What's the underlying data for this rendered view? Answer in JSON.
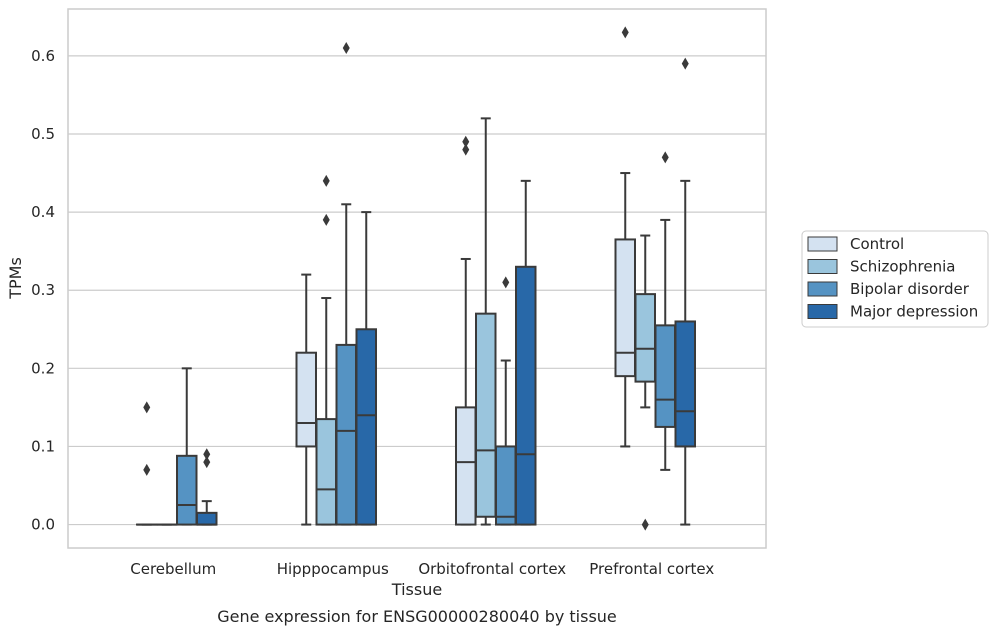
{
  "chart_data": {
    "type": "boxplot",
    "title": "",
    "caption": "Gene expression for ENSG00000280040 by tissue",
    "xlabel": "Tissue",
    "ylabel": "TPMs",
    "ylim": [
      -0.03,
      0.66
    ],
    "yticks": [
      0.0,
      0.1,
      0.2,
      0.3,
      0.4,
      0.5,
      0.6
    ],
    "ytick_labels": [
      "0.0",
      "0.1",
      "0.2",
      "0.3",
      "0.4",
      "0.5",
      "0.6"
    ],
    "grid": "horizontal",
    "legend_placement": "right",
    "categories": [
      "Cerebellum",
      "Hipppocampus",
      "Orbitofrontal cortex",
      "Prefrontal cortex"
    ],
    "series": [
      {
        "name": "Control",
        "color": "#d4e2f1",
        "boxes": [
          {
            "whislo": 0,
            "q1": 0,
            "med": 0,
            "q3": 0,
            "whishi": 0,
            "fliers": [
              0.07,
              0.15
            ]
          },
          {
            "whislo": 0,
            "q1": 0.1,
            "med": 0.13,
            "q3": 0.22,
            "whishi": 0.32,
            "fliers": []
          },
          {
            "whislo": 0,
            "q1": 0,
            "med": 0.08,
            "q3": 0.15,
            "whishi": 0.34,
            "fliers": [
              0.48,
              0.49
            ]
          },
          {
            "whislo": 0.1,
            "q1": 0.19,
            "med": 0.22,
            "q3": 0.365,
            "whishi": 0.45,
            "fliers": [
              0.63
            ]
          }
        ]
      },
      {
        "name": "Schizophrenia",
        "color": "#9ac5dd",
        "boxes": [
          {
            "whislo": 0,
            "q1": 0,
            "med": 0,
            "q3": 0,
            "whishi": 0,
            "fliers": []
          },
          {
            "whislo": 0,
            "q1": 0,
            "med": 0.045,
            "q3": 0.135,
            "whishi": 0.29,
            "fliers": [
              0.39,
              0.44
            ]
          },
          {
            "whislo": 0,
            "q1": 0.01,
            "med": 0.095,
            "q3": 0.27,
            "whishi": 0.52,
            "fliers": []
          },
          {
            "whislo": 0.15,
            "q1": 0.183,
            "med": 0.225,
            "q3": 0.295,
            "whishi": 0.37,
            "fliers": [
              0
            ]
          }
        ]
      },
      {
        "name": "Bipolar disorder",
        "color": "#5593c3",
        "boxes": [
          {
            "whislo": 0,
            "q1": 0,
            "med": 0.025,
            "q3": 0.088,
            "whishi": 0.2,
            "fliers": []
          },
          {
            "whislo": 0,
            "q1": 0,
            "med": 0.12,
            "q3": 0.23,
            "whishi": 0.41,
            "fliers": [
              0.61
            ]
          },
          {
            "whislo": 0,
            "q1": 0,
            "med": 0.01,
            "q3": 0.1,
            "whishi": 0.21,
            "fliers": [
              0.31
            ]
          },
          {
            "whislo": 0.07,
            "q1": 0.125,
            "med": 0.16,
            "q3": 0.255,
            "whishi": 0.39,
            "fliers": [
              0.47
            ]
          }
        ]
      },
      {
        "name": "Major depression",
        "color": "#2868a8",
        "boxes": [
          {
            "whislo": 0,
            "q1": 0,
            "med": 0,
            "q3": 0.015,
            "whishi": 0.03,
            "fliers": [
              0.08,
              0.09
            ]
          },
          {
            "whislo": 0,
            "q1": 0,
            "med": 0.14,
            "q3": 0.25,
            "whishi": 0.4,
            "fliers": []
          },
          {
            "whislo": 0,
            "q1": 0,
            "med": 0.09,
            "q3": 0.33,
            "whishi": 0.44,
            "fliers": []
          },
          {
            "whislo": 0,
            "q1": 0.1,
            "med": 0.145,
            "q3": 0.26,
            "whishi": 0.44,
            "fliers": [
              0.59
            ]
          }
        ]
      }
    ],
    "colors": {
      "frame": "#cccccc",
      "grid": "#cccccc",
      "line": "#3a3a3a",
      "text": "#262626"
    }
  }
}
